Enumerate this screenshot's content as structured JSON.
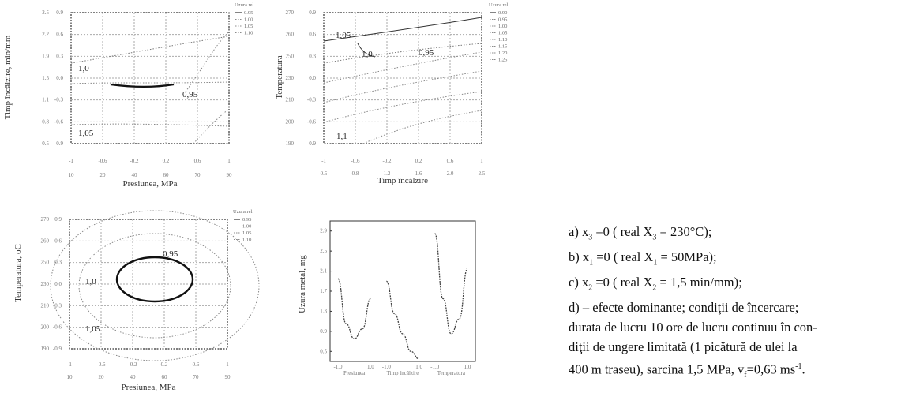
{
  "panels": [
    {
      "id": "a",
      "type": "contour",
      "ylabel": "Timp încălzire, min/mm",
      "xlabel": "Presiunea, MPa",
      "xticks_norm": [
        "-1",
        "-0.6",
        "-0.2",
        "0.2",
        "0.6",
        "1"
      ],
      "xticks_real": [
        "10",
        "20",
        "40",
        "60",
        "70",
        "90"
      ],
      "yticks_norm": [
        "-0.9",
        "-0.6",
        "-0.3",
        "0.0",
        "0.3",
        "0.6",
        "0.9"
      ],
      "yticks_real": [
        "0.5",
        "0.8",
        "1.1",
        "1.5",
        "1.9",
        "2.2",
        "2.5"
      ],
      "legend_title": "Uzura rel.",
      "legend_values": [
        "0.95",
        "1.00",
        "1.05",
        "1.10"
      ],
      "contour_labels": [
        "1,0",
        "0,95",
        "1,05"
      ]
    },
    {
      "id": "b",
      "type": "contour",
      "ylabel": "Temperatura",
      "xlabel": "Timp încălzire",
      "xticks_norm": [
        "-1",
        "-0.6",
        "-0.2",
        "0.2",
        "0.6",
        "1"
      ],
      "xticks_real": [
        "0.5",
        "0.8",
        "1.2",
        "1.6",
        "2.0",
        "2.5"
      ],
      "yticks_norm": [
        "-0.9",
        "-0.6",
        "-0.3",
        "0.0",
        "0.3",
        "0.6",
        "0.9"
      ],
      "yticks_real": [
        "190",
        "200",
        "210",
        "230",
        "250",
        "260",
        "270"
      ],
      "legend_title": "Uzura rel.",
      "legend_values": [
        "0.90",
        "0.95",
        "1.00",
        "1.05",
        "1.10",
        "1.15",
        "1.20",
        "1.25"
      ],
      "contour_labels": [
        "1,05",
        "1,0",
        "0,95",
        "1,1"
      ]
    },
    {
      "id": "c",
      "type": "contour",
      "ylabel": "Temperatura, oC",
      "xlabel": "Presiunea, MPa",
      "xticks_norm": [
        "-1",
        "-0.6",
        "-0.2",
        "0.2",
        "0.6",
        "1"
      ],
      "xticks_real": [
        "10",
        "20",
        "40",
        "60",
        "70",
        "90"
      ],
      "yticks_norm": [
        "-0.9",
        "-0.6",
        "-0.3",
        "0.0",
        "0.3",
        "0.6",
        "0.9"
      ],
      "yticks_real": [
        "190",
        "200",
        "210",
        "230",
        "250",
        "260",
        "270"
      ],
      "legend_title": "Uzura rel.",
      "legend_values": [
        "0.95",
        "1.00",
        "1.05",
        "1.10"
      ],
      "contour_labels": [
        "1,0",
        "0,95",
        "1,05"
      ]
    },
    {
      "id": "d",
      "type": "line",
      "ylabel": "Uzura metal, mg",
      "yticks": [
        "0.5",
        "0.9",
        "1.3",
        "1.7",
        "2.1",
        "2.5",
        "2.9"
      ],
      "ylim": [
        0.3,
        3.1
      ],
      "xticks": [
        "-1.0",
        "1.0",
        "-1.0",
        "1.0",
        "-1.0",
        "1.0"
      ],
      "factor_labels": [
        "Presiunea",
        "Timp încălzire",
        "Temperatura"
      ],
      "series": [
        {
          "name": "Presiunea",
          "x": [
            -1,
            -0.5,
            0,
            0.5,
            1
          ],
          "y": [
            1.95,
            1.05,
            0.75,
            0.95,
            1.55
          ]
        },
        {
          "name": "Timp încălzire",
          "x": [
            -1,
            -0.5,
            0,
            0.5,
            1
          ],
          "y": [
            1.9,
            1.25,
            0.85,
            0.5,
            0.35
          ]
        },
        {
          "name": "Temperatura",
          "x": [
            -1,
            -0.5,
            0,
            0.5,
            1
          ],
          "y": [
            2.85,
            1.55,
            0.85,
            1.15,
            2.15
          ]
        }
      ]
    }
  ],
  "caption": {
    "a": {
      "prefix": "a) x",
      "sub": "3",
      "mid": " =0 ( real X",
      "sub2": "3",
      "suffix": " = 230°C);"
    },
    "b": {
      "prefix": "b) x",
      "sub": "1",
      "mid": " =0 ( real X",
      "sub2": "1",
      "suffix": " = 50MPa);"
    },
    "c": {
      "prefix": "c) x",
      "sub": "2",
      "mid": " =0 ( real X",
      "sub2": "2",
      "suffix": " = 1,5 min/mm);"
    },
    "d_lines": [
      "d) – efecte dominante; condiţii de încercare;",
      "durata de lucru 10 ore de lucru continuu în con-",
      "diţii de ungere limitată (1 picătură de ulei la"
    ],
    "d_last": {
      "prefix": "400 m traseu), sarcina 1,5 MPa, v",
      "sub": "f",
      "mid": "=0,63 ms",
      "sup": "-1",
      "suffix": "."
    }
  }
}
